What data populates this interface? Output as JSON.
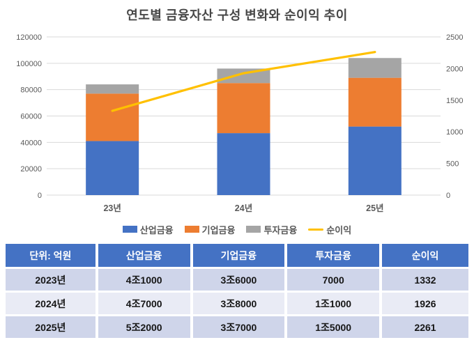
{
  "chart_data": {
    "type": "bar",
    "subtype": "stacked-bar-with-line",
    "title": "연도별 금융자산 구성 변화와 순이익 추이",
    "categories": [
      "23년",
      "24년",
      "25년"
    ],
    "series": [
      {
        "name": "산업금융",
        "kind": "bar",
        "color": "#4472C4",
        "values": [
          41000,
          47000,
          52000
        ]
      },
      {
        "name": "기업금융",
        "kind": "bar",
        "color": "#ED7D31",
        "values": [
          36000,
          38000,
          37000
        ]
      },
      {
        "name": "투자금융",
        "kind": "bar",
        "color": "#A5A5A5",
        "values": [
          7000,
          11000,
          15000
        ]
      },
      {
        "name": "순이익",
        "kind": "line",
        "axis": "right",
        "color": "#FFC000",
        "values": [
          1332,
          1926,
          2261
        ]
      }
    ],
    "stacked": true,
    "grid": true,
    "legend_position": "bottom",
    "left_axis": {
      "min": 0,
      "max": 120000,
      "step": 20000
    },
    "right_axis": {
      "min": 0,
      "max": 2500,
      "step": 500
    }
  },
  "colors": {
    "gridline": "#D9D9D9",
    "axis_text": "#595959",
    "title_text": "#474747"
  },
  "table": {
    "headers": [
      "단위: 억원",
      "산업금융",
      "기업금융",
      "투자금융",
      "순이익"
    ],
    "rows": [
      [
        "2023년",
        "4조1000",
        "3조6000",
        "7000",
        "1332"
      ],
      [
        "2024년",
        "4조7000",
        "3조8000",
        "1조1000",
        "1926"
      ],
      [
        "2025년",
        "5조2000",
        "3조7000",
        "1조5000",
        "2261"
      ]
    ],
    "header_bg": "#4472C4",
    "row_bg_odd": "#CFD5EA",
    "row_bg_even": "#E9EBF5"
  }
}
